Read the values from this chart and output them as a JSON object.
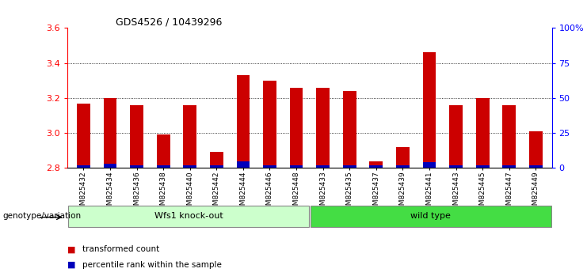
{
  "title": "GDS4526 / 10439296",
  "samples": [
    "GSM825432",
    "GSM825434",
    "GSM825436",
    "GSM825438",
    "GSM825440",
    "GSM825442",
    "GSM825444",
    "GSM825446",
    "GSM825448",
    "GSM825433",
    "GSM825435",
    "GSM825437",
    "GSM825439",
    "GSM825441",
    "GSM825443",
    "GSM825445",
    "GSM825447",
    "GSM825449"
  ],
  "transformed_counts": [
    3.17,
    3.2,
    3.16,
    2.99,
    3.16,
    2.89,
    3.33,
    3.3,
    3.26,
    3.26,
    3.24,
    2.84,
    2.92,
    3.46,
    3.16,
    3.2,
    3.16,
    3.01
  ],
  "percentile_ranks_pct": [
    2,
    3,
    2,
    2,
    2,
    2,
    5,
    2,
    2,
    2,
    2,
    2,
    2,
    4,
    2,
    2,
    2,
    2
  ],
  "ymin": 2.8,
  "ymax": 3.6,
  "yticks": [
    2.8,
    3.0,
    3.2,
    3.4,
    3.6
  ],
  "right_yticks": [
    0,
    25,
    50,
    75,
    100
  ],
  "right_yticklabels": [
    "0",
    "25",
    "50",
    "75",
    "100%"
  ],
  "bar_color_red": "#CC0000",
  "bar_color_blue": "#0000BB",
  "group1_label": "Wfs1 knock-out",
  "group2_label": "wild type",
  "group1_color": "#CCFFCC",
  "group2_color": "#44DD44",
  "group1_count": 9,
  "group2_count": 9,
  "legend_red": "transformed count",
  "legend_blue": "percentile rank within the sample",
  "xlabel_left": "genotype/variation",
  "bar_width": 0.5,
  "bg_color": "#FFFFFF",
  "tick_bg_color": "#DDDDDD"
}
